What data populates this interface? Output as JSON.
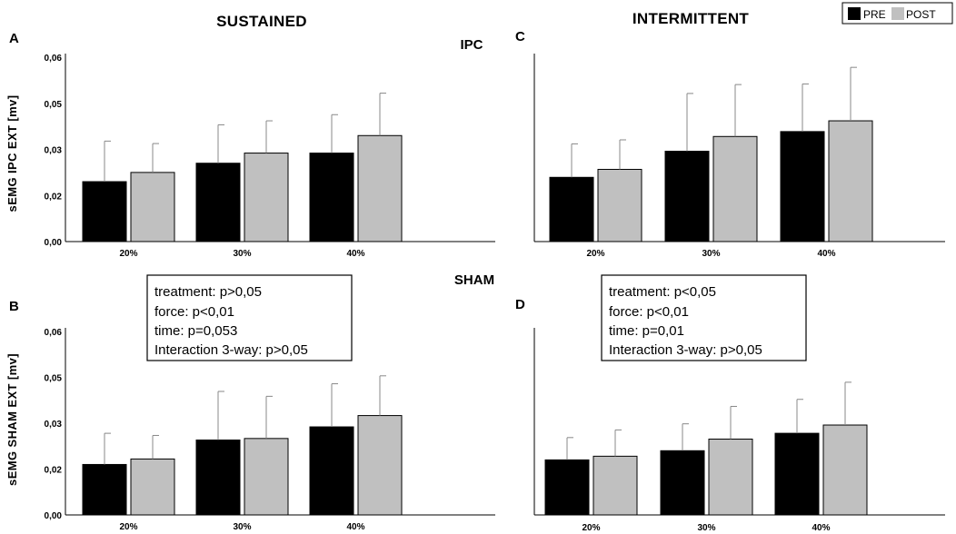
{
  "figure": {
    "col_titles": [
      "SUSTAINED",
      "INTERMITTENT"
    ],
    "row_titles": [
      "IPC",
      "SHAM"
    ],
    "ylabels": [
      "sEMG IPC EXT  [mv]",
      "sEMG SHAM EXT  [mv]"
    ],
    "legend": [
      {
        "label": "PRE",
        "color": "#000000"
      },
      {
        "label": "POST",
        "color": "#c0c0c0"
      }
    ],
    "stats": [
      [
        "treatment: p>0,05",
        "force: p<0,01",
        "time: p=0,053",
        "Interaction 3-way: p>0,05"
      ],
      [
        "treatment: p<0,05",
        "force: p<0,01",
        "time: p=0,01",
        "Interaction 3-way: p>0,05"
      ]
    ]
  },
  "chart_data": [
    {
      "panel": "A",
      "type": "bar",
      "categories": [
        "20%",
        "30%",
        "40%"
      ],
      "yticks": [
        "0,00",
        "0,02",
        "0,03",
        "0,05",
        "0,06"
      ],
      "ylim": [
        0,
        0.06
      ],
      "series": [
        {
          "name": "PRE",
          "values": [
            0.0195,
            0.0255,
            0.0288
          ],
          "errors": [
            0.0132,
            0.0125,
            0.0125
          ]
        },
        {
          "name": "POST",
          "values": [
            0.0225,
            0.0288,
            0.0345
          ],
          "errors": [
            0.0094,
            0.0105,
            0.0138
          ]
        }
      ]
    },
    {
      "panel": "C",
      "type": "bar",
      "categories": [
        "20%",
        "30%",
        "40%"
      ],
      "yticks": [],
      "ylim": [
        0,
        0.06
      ],
      "series": [
        {
          "name": "PRE",
          "values": [
            0.0209,
            0.0294,
            0.0358
          ],
          "errors": [
            0.0109,
            0.0188,
            0.0155
          ]
        },
        {
          "name": "POST",
          "values": [
            0.0235,
            0.0342,
            0.0393
          ],
          "errors": [
            0.0096,
            0.0169,
            0.0174
          ]
        }
      ]
    },
    {
      "panel": "B",
      "type": "bar",
      "categories": [
        "20%",
        "30%",
        "40%"
      ],
      "yticks": [
        "0,00",
        "0,02",
        "0,03",
        "0,05",
        "0,06"
      ],
      "ylim": [
        0,
        0.06
      ],
      "series": [
        {
          "name": "PRE",
          "values": [
            0.0165,
            0.0245,
            0.0288
          ],
          "errors": [
            0.0102,
            0.0159,
            0.0141
          ]
        },
        {
          "name": "POST",
          "values": [
            0.0183,
            0.025,
            0.0325
          ],
          "errors": [
            0.0077,
            0.0138,
            0.013
          ]
        }
      ]
    },
    {
      "panel": "D",
      "type": "bar",
      "categories": [
        "20%",
        "30%",
        "40%"
      ],
      "yticks": [],
      "ylim": [
        0,
        0.06
      ],
      "series": [
        {
          "name": "PRE",
          "values": [
            0.018,
            0.021,
            0.0267
          ],
          "errors": [
            0.0073,
            0.0088,
            0.0111
          ]
        },
        {
          "name": "POST",
          "values": [
            0.0192,
            0.0248,
            0.0294
          ],
          "errors": [
            0.0086,
            0.0107,
            0.014
          ]
        }
      ]
    }
  ]
}
